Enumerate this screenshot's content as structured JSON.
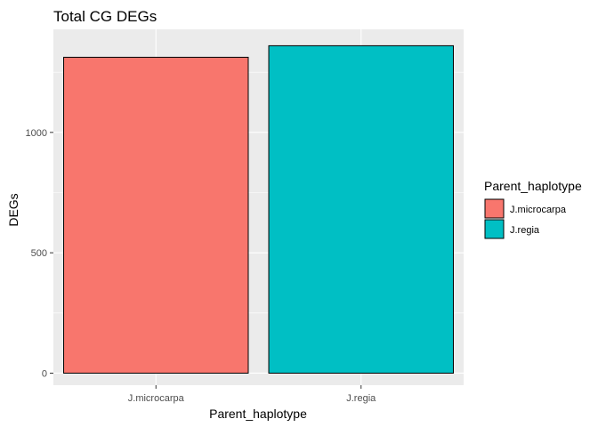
{
  "chart_data": {
    "type": "bar",
    "title": "Total CG DEGs",
    "xlabel": "Parent_haplotype",
    "ylabel": "DEGs",
    "categories": [
      "J.microcarpa",
      "J.regia"
    ],
    "values": [
      1312,
      1360
    ],
    "colors": [
      "#F8766D",
      "#00BFC4"
    ],
    "ylim": [
      -50,
      1428
    ],
    "yticks": [
      0,
      500,
      1000
    ],
    "grid": true,
    "legend": {
      "title": "Parent_haplotype",
      "position": "right",
      "entries": [
        "J.microcarpa",
        "J.regia"
      ]
    },
    "panel_color": "#EBEBEB",
    "grid_color": "#FFFFFF",
    "bar_outline": "#000000"
  }
}
